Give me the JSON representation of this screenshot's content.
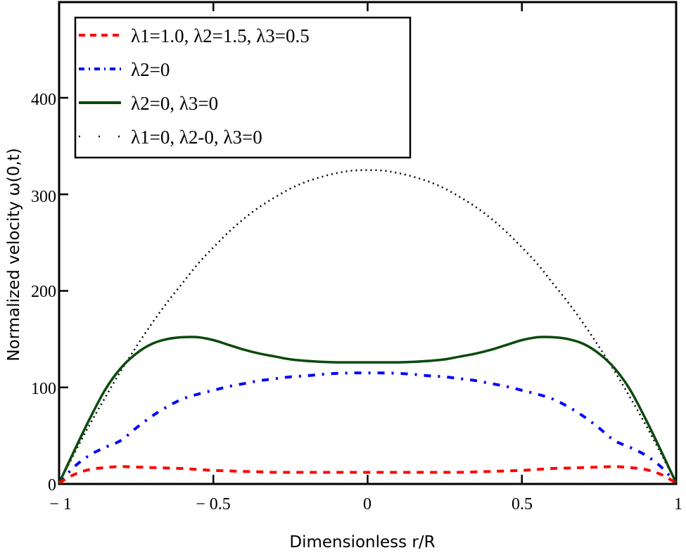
{
  "chart_data": {
    "type": "line",
    "title": "",
    "xlabel": "Dimensionless r/R",
    "ylabel": "Normalized velocity ω(0,t)",
    "xlim": [
      -1,
      1
    ],
    "ylim": [
      0,
      495
    ],
    "x_ticks": [
      -1,
      -0.5,
      0,
      0.5,
      1
    ],
    "x_tick_labels": [
      "− 1",
      "− 0.5",
      "0",
      "0.5",
      "1"
    ],
    "y_ticks": [
      0,
      100,
      200,
      300,
      400
    ],
    "y_tick_labels": [
      "0",
      "100",
      "200",
      "300",
      "400"
    ],
    "grid": false,
    "legend_position": "upper-left (inside)",
    "x": [
      -1.0,
      -0.95,
      -0.9,
      -0.85,
      -0.8,
      -0.75,
      -0.7,
      -0.65,
      -0.6,
      -0.55,
      -0.5,
      -0.45,
      -0.4,
      -0.35,
      -0.3,
      -0.25,
      -0.2,
      -0.15,
      -0.1,
      -0.05,
      0.0,
      0.05,
      0.1,
      0.15,
      0.2,
      0.25,
      0.3,
      0.35,
      0.4,
      0.45,
      0.5,
      0.55,
      0.6,
      0.65,
      0.7,
      0.75,
      0.8,
      0.85,
      0.9,
      0.95,
      1.0
    ],
    "series": [
      {
        "name": "λ1=1.0, λ2=1.5, λ3=0.5",
        "color": "#ff0000",
        "style": "dashed",
        "values": [
          1,
          10,
          15,
          17,
          18,
          17.5,
          17,
          16.5,
          16,
          15,
          14,
          13.5,
          13,
          12.5,
          12,
          12,
          12,
          12,
          12,
          12,
          12,
          12,
          12,
          12,
          12,
          12,
          12,
          12.5,
          13,
          13.5,
          14,
          15,
          16,
          16.5,
          17,
          17.5,
          18,
          17,
          15,
          10,
          1
        ]
      },
      {
        "name": "λ2=0",
        "color": "#0000ff",
        "style": "dash-dot",
        "values": [
          1,
          18,
          30,
          38,
          45,
          58,
          70,
          80,
          88,
          93,
          97,
          101,
          104,
          107,
          109,
          111,
          112,
          113.5,
          114.5,
          115,
          115,
          115,
          114.5,
          113.5,
          112,
          111,
          109,
          107,
          104,
          101,
          97,
          93,
          88,
          80,
          70,
          58,
          45,
          38,
          30,
          18,
          1
        ]
      },
      {
        "name": "λ2=0, λ3=0",
        "color": "#0a4a0a",
        "style": "solid",
        "values": [
          1,
          35,
          68,
          98,
          120,
          135,
          145,
          150,
          152,
          152,
          149,
          144,
          139,
          135,
          132,
          129,
          127.5,
          126.5,
          126,
          126,
          126,
          126,
          126,
          126.5,
          127.5,
          129,
          132,
          135,
          139,
          144,
          149,
          152,
          152,
          150,
          145,
          135,
          120,
          98,
          68,
          35,
          1
        ]
      },
      {
        "name": "λ1=0, λ2-0, λ3=0",
        "color": "#000000",
        "style": "dotted",
        "values": [
          1,
          32,
          62,
          90,
          117,
          142,
          166,
          188,
          208,
          228,
          245,
          261,
          275,
          287,
          297,
          306,
          313,
          318,
          322,
          324.5,
          325,
          324.5,
          322,
          318,
          313,
          306,
          297,
          287,
          275,
          261,
          245,
          228,
          208,
          188,
          166,
          142,
          117,
          90,
          62,
          32,
          1
        ]
      }
    ]
  },
  "legend": {
    "items": [
      {
        "label": "λ1=1.0, λ2=1.5, λ3=0.5"
      },
      {
        "label": "λ2=0"
      },
      {
        "label": "λ2=0, λ3=0"
      },
      {
        "label": "λ1=0, λ2-0, λ3=0"
      }
    ]
  },
  "axes": {
    "xlabel": "Dimensionless r/R",
    "ylabel": "Normalized velocity ω(0,t)",
    "x_tick_labels": [
      "− 1",
      "− 0.5",
      "0",
      "0.5",
      "1"
    ],
    "y_tick_labels": [
      "0",
      "100",
      "200",
      "300",
      "400"
    ]
  }
}
